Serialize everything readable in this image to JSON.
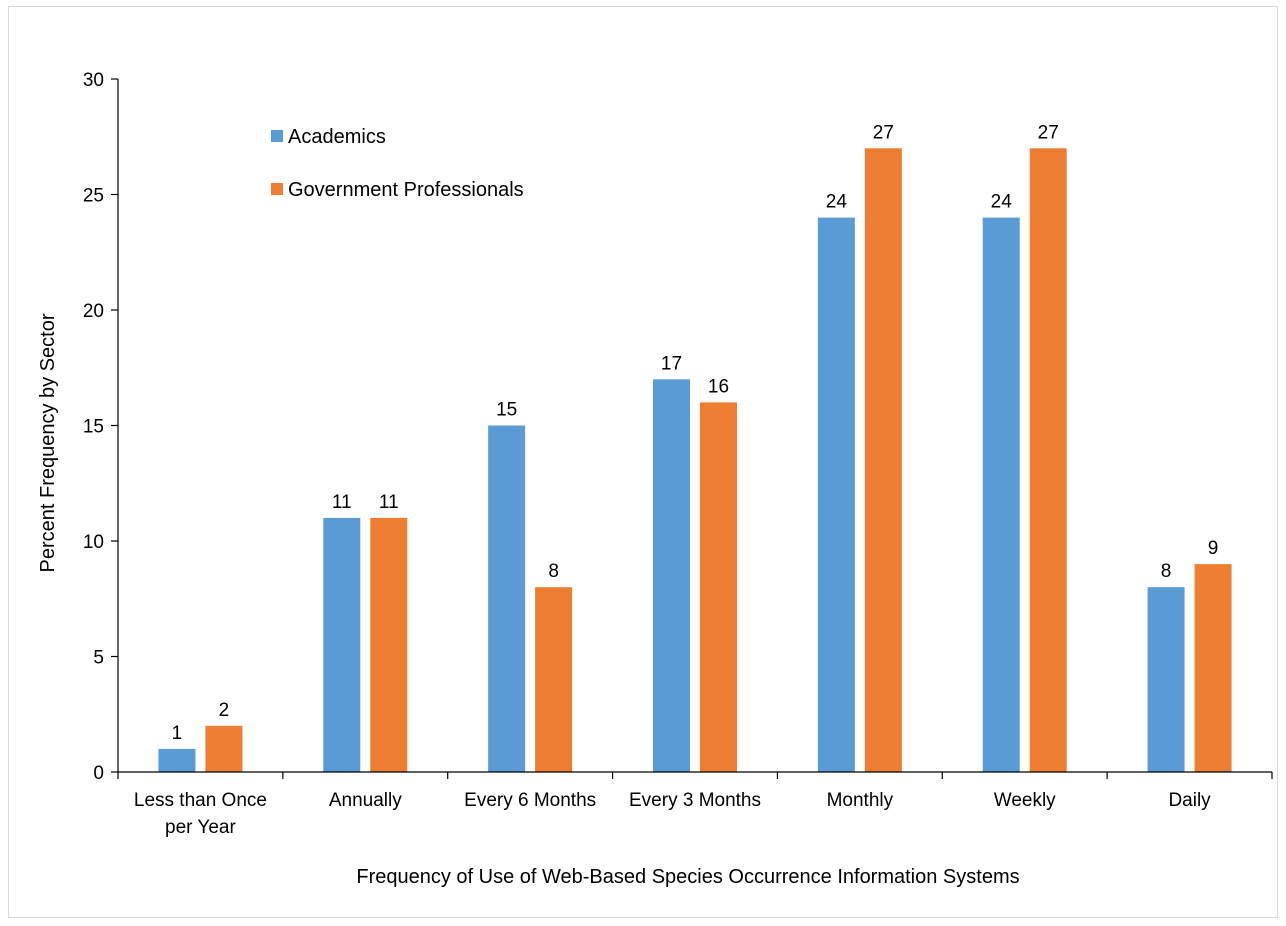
{
  "chart_data": {
    "type": "bar",
    "title": "",
    "xlabel": "Frequency of Use of Web-Based Species Occurrence Information Systems",
    "ylabel": "Percent Frequency by Sector",
    "ylim": [
      0,
      30
    ],
    "yticks": [
      0,
      5,
      10,
      15,
      20,
      25,
      30
    ],
    "categories": [
      [
        "Less than Once",
        "per Year"
      ],
      [
        "Annually"
      ],
      [
        "Every 6 Months"
      ],
      [
        "Every 3 Months"
      ],
      [
        "Monthly"
      ],
      [
        "Weekly"
      ],
      [
        "Daily"
      ]
    ],
    "series": [
      {
        "name": "Academics",
        "color": "#5B9BD5",
        "values": [
          1,
          11,
          15,
          17,
          24,
          24,
          8
        ]
      },
      {
        "name": "Government Professionals",
        "color": "#ED7D31",
        "values": [
          2,
          11,
          8,
          16,
          27,
          27,
          9
        ]
      }
    ],
    "legend_position": "top-left",
    "grid": false,
    "data_labels": true
  }
}
